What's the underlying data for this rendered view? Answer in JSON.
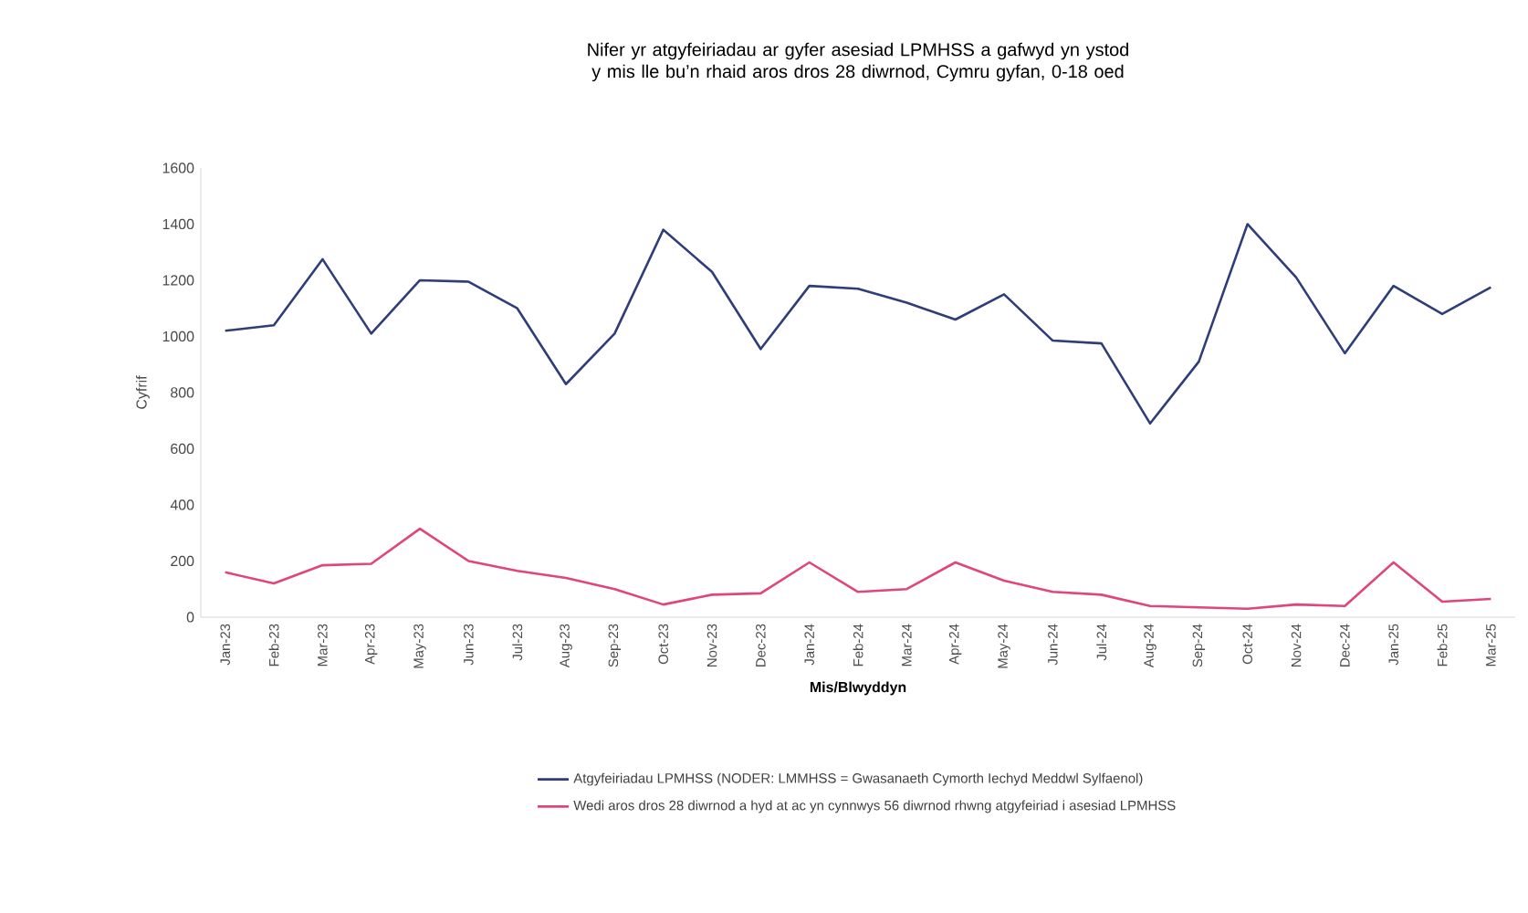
{
  "chart_data": {
    "type": "line",
    "title": "Nifer yr atgyfeiriadau ar gyfer asesiad LPMHSS a gafwyd yn ystod y mis lle bu’n rhaid aros dros 28 diwrnod, Cymru gyfan, 0-18 oed",
    "xlabel": "Mis/Blwyddyn",
    "ylabel": "Cyfrif",
    "categories": [
      "Jan-23",
      "Feb-23",
      "Mar-23",
      "Apr-23",
      "May-23",
      "Jun-23",
      "Jul-23",
      "Aug-23",
      "Sep-23",
      "Oct-23",
      "Nov-23",
      "Dec-23",
      "Jan-24",
      "Feb-24",
      "Mar-24",
      "Apr-24",
      "May-24",
      "Jun-24",
      "Jul-24",
      "Aug-24",
      "Sep-24",
      "Oct-24",
      "Nov-24",
      "Dec-24",
      "Jan-25",
      "Feb-25",
      "Mar-25"
    ],
    "series": [
      {
        "name": "Atgyfeiriadau LPMHSS (NODER: LMMHSS = Gwasanaeth Cymorth Iechyd Meddwl Sylfaenol)",
        "color": "#2f3d78",
        "values": [
          1020,
          1040,
          1275,
          1010,
          1200,
          1195,
          1100,
          830,
          1010,
          1380,
          1230,
          955,
          1180,
          1170,
          1120,
          1060,
          1150,
          985,
          975,
          690,
          910,
          1400,
          1210,
          940,
          1180,
          1080,
          1175
        ]
      },
      {
        "name": "Wedi aros dros 28 diwrnod a hyd at ac yn cynnwys 56 diwrnod rhwng atgyfeiriad i asesiad LPMHSS",
        "color": "#e0457b",
        "values": [
          160,
          120,
          185,
          190,
          315,
          200,
          165,
          140,
          100,
          45,
          80,
          85,
          195,
          90,
          100,
          195,
          130,
          90,
          80,
          40,
          35,
          30,
          45,
          40,
          195,
          55,
          65
        ]
      }
    ],
    "ylim": [
      0,
      1600
    ],
    "yticks": [
      0,
      200,
      400,
      600,
      800,
      1000,
      1200,
      1400,
      1600
    ],
    "grid": false,
    "legend": "bottom",
    "marker": "none",
    "line_style": "solid"
  }
}
